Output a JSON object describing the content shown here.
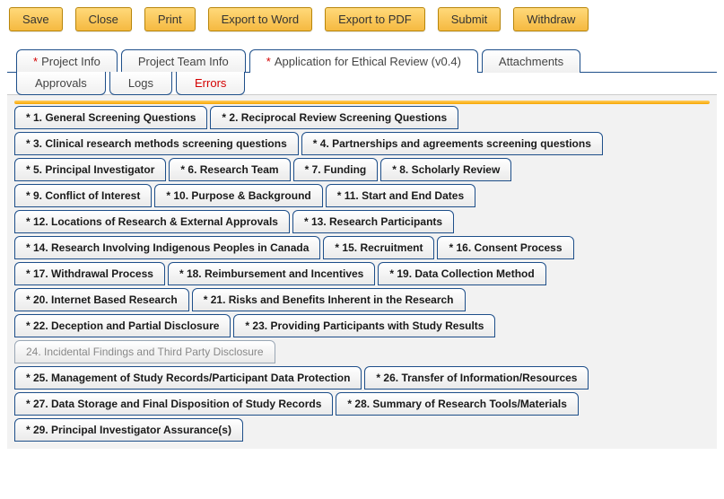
{
  "toolbar": {
    "buttons": [
      "Save",
      "Close",
      "Print",
      "Export to Word",
      "Export to PDF",
      "Submit",
      "Withdraw"
    ]
  },
  "tabs_main": [
    {
      "label": "Project Info",
      "required": true,
      "active": false
    },
    {
      "label": "Project Team Info",
      "required": false,
      "active": false
    },
    {
      "label": "Application for Ethical Review (v0.4)",
      "required": true,
      "active": true
    },
    {
      "label": "Attachments",
      "required": false,
      "active": false
    }
  ],
  "tabs_sub": [
    {
      "label": "Approvals",
      "variant": ""
    },
    {
      "label": "Logs",
      "variant": ""
    },
    {
      "label": "Errors",
      "variant": "errors"
    }
  ],
  "sections": [
    [
      {
        "label": "* 1. General Screening Questions",
        "active": true
      },
      {
        "label": "* 2. Reciprocal Review Screening Questions",
        "active": true
      }
    ],
    [
      {
        "label": "* 3. Clinical research methods screening questions",
        "active": true
      },
      {
        "label": "* 4. Partnerships and agreements screening questions",
        "active": true
      }
    ],
    [
      {
        "label": "* 5. Principal Investigator",
        "active": true
      },
      {
        "label": "* 6. Research Team",
        "active": true
      },
      {
        "label": "* 7. Funding",
        "active": true
      },
      {
        "label": "* 8. Scholarly Review",
        "active": true
      }
    ],
    [
      {
        "label": "* 9. Conflict of Interest",
        "active": true
      },
      {
        "label": "* 10. Purpose & Background",
        "active": true
      },
      {
        "label": "* 11. Start and End Dates",
        "active": true
      }
    ],
    [
      {
        "label": "* 12. Locations of Research & External Approvals",
        "active": true
      },
      {
        "label": "* 13. Research Participants",
        "active": true
      }
    ],
    [
      {
        "label": "* 14. Research Involving Indigenous Peoples in Canada",
        "active": true
      },
      {
        "label": "* 15. Recruitment",
        "active": true
      },
      {
        "label": "* 16. Consent Process",
        "active": true
      }
    ],
    [
      {
        "label": "* 17. Withdrawal Process",
        "active": true
      },
      {
        "label": "* 18. Reimbursement and Incentives",
        "active": true
      },
      {
        "label": "* 19. Data Collection Method",
        "active": true
      }
    ],
    [
      {
        "label": "* 20. Internet Based Research",
        "active": true
      },
      {
        "label": "* 21. Risks and Benefits Inherent in the Research",
        "active": true
      }
    ],
    [
      {
        "label": "* 22. Deception and Partial Disclosure",
        "active": true
      },
      {
        "label": "* 23. Providing Participants with Study Results",
        "active": true
      }
    ],
    [
      {
        "label": "24. Incidental Findings and Third Party Disclosure",
        "active": false
      }
    ],
    [
      {
        "label": "* 25. Management of Study Records/Participant Data Protection",
        "active": true
      },
      {
        "label": "* 26. Transfer of Information/Resources",
        "active": true
      }
    ],
    [
      {
        "label": "* 27. Data Storage and Final Disposition of Study Records",
        "active": true
      },
      {
        "label": "* 28. Summary of Research Tools/Materials",
        "active": true
      }
    ],
    [
      {
        "label": "* 29. Principal Investigator Assurance(s)",
        "active": true
      }
    ]
  ]
}
